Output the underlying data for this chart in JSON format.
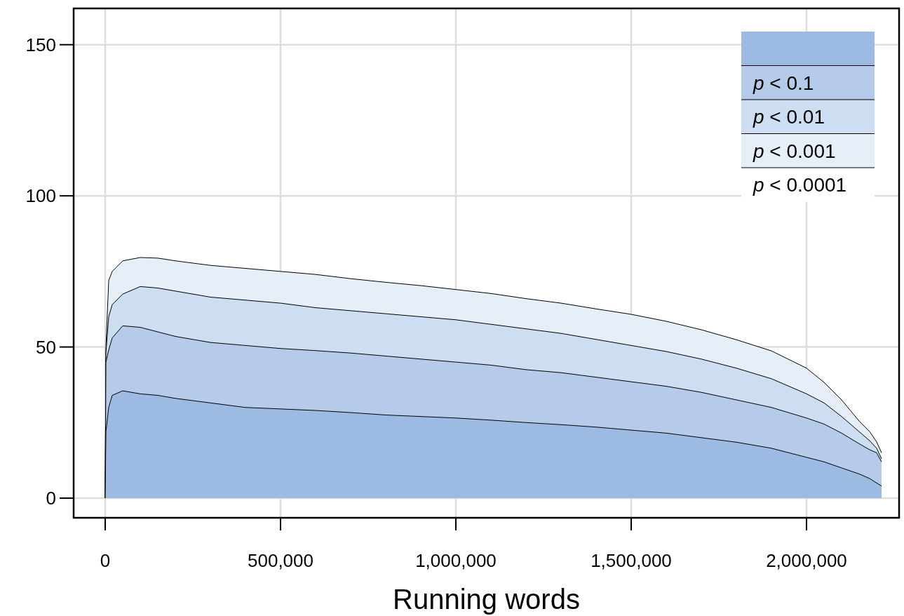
{
  "chart_data": {
    "type": "area",
    "xlabel": "Running words",
    "x": [
      0,
      2000,
      10000,
      20000,
      50000,
      100000,
      150000,
      200000,
      300000,
      400000,
      500000,
      600000,
      700000,
      800000,
      900000,
      1000000,
      1100000,
      1200000,
      1300000,
      1400000,
      1500000,
      1600000,
      1700000,
      1800000,
      1900000,
      2000000,
      2050000,
      2100000,
      2150000,
      2180000,
      2200000,
      2214000
    ],
    "series": [
      {
        "color": "#e6eef8",
        "name": "p < 0.001",
        "values": [
          0,
          50,
          72,
          75,
          78.5,
          79.6,
          79.4,
          78.5,
          77,
          76,
          75,
          74,
          72.6,
          71.4,
          70.3,
          69,
          67.7,
          66,
          64.5,
          62.6,
          60.8,
          58.5,
          55.7,
          52.4,
          48.7,
          43,
          38.3,
          32.5,
          25.5,
          22,
          18.6,
          15
        ]
      },
      {
        "color": "#cddef2",
        "name": "p < 0.01",
        "values": [
          0,
          48,
          60,
          64,
          67.5,
          70,
          69.5,
          68.5,
          66.5,
          65.5,
          64.5,
          63,
          62,
          61,
          60,
          59,
          57.5,
          56,
          54.5,
          52.5,
          50.5,
          48.5,
          46,
          43,
          39.5,
          34.5,
          31.5,
          27,
          22,
          19,
          16.5,
          13
        ]
      },
      {
        "color": "#b5cbe9",
        "name": "p < 0.1",
        "values": [
          0,
          45,
          49,
          53,
          57,
          56.5,
          55,
          53.5,
          51.5,
          50.5,
          49.5,
          48.8,
          48,
          47,
          46,
          45,
          44,
          42.5,
          41.5,
          40,
          38.5,
          37,
          35,
          32.5,
          30,
          26.5,
          24.5,
          21.5,
          18,
          16,
          15,
          12
        ]
      },
      {
        "color": "#9dbbe2",
        "values": [
          0,
          22,
          30,
          34,
          35.5,
          34.5,
          34,
          33,
          31.5,
          30,
          29.5,
          29,
          28.3,
          27.5,
          27,
          26.5,
          25.8,
          25,
          24.3,
          23.5,
          22.5,
          21.5,
          20,
          18.5,
          16.5,
          13.5,
          12,
          10,
          8,
          6.5,
          5,
          4
        ]
      }
    ],
    "annotations": [
      "p < 0.0001"
    ],
    "xlim": [
      -90000,
      2264000
    ],
    "ylim": [
      -6.5,
      162
    ],
    "xticks": [
      {
        "value": 0,
        "label": "0"
      },
      {
        "value": 500000,
        "label": "500,000"
      },
      {
        "value": 1000000,
        "label": "1,000,000"
      },
      {
        "value": 1500000,
        "label": "1,500,000"
      },
      {
        "value": 2000000,
        "label": "2,000,000"
      }
    ],
    "yticks": [
      0,
      50,
      100,
      150
    ],
    "grid": true,
    "legend": "top right"
  }
}
